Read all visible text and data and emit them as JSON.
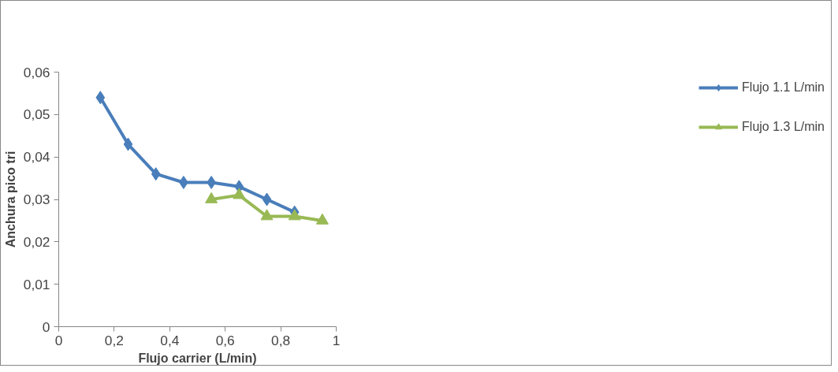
{
  "chart_data": {
    "type": "line",
    "xlabel": "Flujo carrier (L/min)",
    "ylabel": "Anchura pico tri",
    "series": [
      {
        "name": "Flujo 1.1 L/min",
        "color": "#4a7ebb",
        "marker": "diamond",
        "x": [
          0.15,
          0.25,
          0.35,
          0.45,
          0.55,
          0.65,
          0.75,
          0.85
        ],
        "values": [
          0.054,
          0.043,
          0.036,
          0.034,
          0.034,
          0.033,
          0.03,
          0.027
        ]
      },
      {
        "name": "Flujo 1.3 L/min",
        "color": "#98b954",
        "marker": "triangle",
        "x": [
          0.55,
          0.65,
          0.75,
          0.85,
          0.95
        ],
        "values": [
          0.03,
          0.031,
          0.026,
          0.026,
          0.025
        ]
      }
    ],
    "xlim": [
      0,
      1
    ],
    "xticks": [
      0,
      {
        "value": 0.2,
        "label": "0,2"
      },
      {
        "value": 0.4,
        "label": "0,4"
      },
      {
        "value": 0.6,
        "label": "0,6"
      },
      {
        "value": 0.8,
        "label": "0,8"
      },
      1
    ],
    "ylim": [
      0,
      0.06
    ],
    "yticks": [
      0,
      {
        "value": 0.01,
        "label": "0,01"
      },
      {
        "value": 0.02,
        "label": "0,02"
      },
      {
        "value": 0.03,
        "label": "0,03"
      },
      {
        "value": 0.04,
        "label": "0,04"
      },
      {
        "value": 0.05,
        "label": "0,05"
      },
      {
        "value": 0.06,
        "label": "0,06"
      }
    ],
    "grid": false,
    "legend": "right",
    "line_style": "solid"
  }
}
